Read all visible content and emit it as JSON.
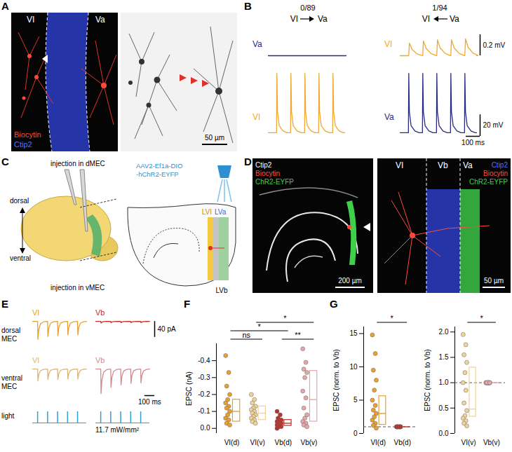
{
  "figure": {
    "A": {
      "letter": "A",
      "stains": [
        {
          "text": "Biocytin",
          "color": "#ff4a3a"
        },
        {
          "text": "Ctip2",
          "color": "#5b6cff"
        }
      ],
      "layers": [
        "VI",
        "Va"
      ],
      "scale_bar": "50 µm"
    },
    "B": {
      "letter": "B",
      "pairs": [
        {
          "count": "0/89",
          "left": "VI",
          "right": "Va",
          "arrow": "right",
          "post": {
            "label": "Va",
            "color": "#2a2a80",
            "psp_mV": [
              0,
              0,
              0,
              0,
              0
            ]
          },
          "pre": {
            "label": "VI",
            "color": "#f0a830"
          }
        },
        {
          "count": "1/94",
          "left": "VI",
          "right": "Va",
          "arrow": "left",
          "post": {
            "label": "VI",
            "color": "#f0a830",
            "psp_mV": [
              0.12,
              0.14,
              0.15,
              0.15,
              0.16
            ]
          },
          "pre": {
            "label": "Va",
            "color": "#2a2a80"
          }
        }
      ],
      "spike_times_ms": [
        50,
        150,
        250,
        350,
        450
      ],
      "spike_amplitude_mV": 55,
      "scale_bars": {
        "psp": {
          "value": 0.2,
          "label": "0.2 mV"
        },
        "spike": {
          "value": 20,
          "label": "20 mV"
        },
        "time": {
          "value": 100,
          "label": "100 ms"
        }
      }
    },
    "C": {
      "letter": "C",
      "dorsal": "dorsal",
      "ventral": "ventral",
      "injection_dorsal": "injection in dMEC",
      "injection_ventral": "injection in vMEC",
      "virus": "AAV2-Ef1a-DIO -hChR2-EYFP",
      "layers": [
        "LVI",
        "LVa",
        "LVb"
      ]
    },
    "D": {
      "letter": "D",
      "left": {
        "stains": [
          {
            "text": "Ctip2",
            "color": "#ffffff"
          },
          {
            "text": "Biocytin",
            "color": "#ff4a3a"
          },
          {
            "text": "ChR2-EYFP",
            "color": "#3fd04a"
          }
        ],
        "scale_bar": "200 µm"
      },
      "right": {
        "layers": [
          "VI",
          "Vb",
          "Va"
        ],
        "stains": [
          {
            "text": "Ctip2",
            "color": "#5b6cff"
          },
          {
            "text": "Biocytin",
            "color": "#ff4a3a"
          },
          {
            "text": "ChR2-EYFP",
            "color": "#3fd04a"
          }
        ],
        "scale_bar": "50 µm"
      }
    },
    "E": {
      "letter": "E",
      "rows": [
        {
          "label": "dorsal MEC",
          "traces": [
            {
              "layer": "VI",
              "color": "#e8a030",
              "epsc_pA": [
                -45,
                -38,
                -36,
                -34,
                -34
              ]
            },
            {
              "layer": "Vb",
              "color": "#c0302a",
              "epsc_pA": [
                -4,
                -3,
                -3,
                -3,
                -3
              ]
            }
          ]
        },
        {
          "label": "ventral MEC",
          "traces": [
            {
              "layer": "VI",
              "color": "#d9b777",
              "epsc_pA": [
                -30,
                -26,
                -26,
                -25,
                -25
              ]
            },
            {
              "layer": "Vb",
              "color": "#d08d8d",
              "epsc_pA": [
                -62,
                -46,
                -40,
                -36,
                -35
              ]
            }
          ]
        }
      ],
      "light": {
        "label": "light",
        "color": "#2f9fd8",
        "times_ms": [
          50,
          150,
          250,
          350,
          450
        ],
        "intensity": "11.7 mW/mm²"
      },
      "scale_bars": {
        "current": {
          "value": 40,
          "label": "40 pA"
        },
        "time": {
          "value": 100,
          "label": "100 ms"
        }
      }
    },
    "F": {
      "letter": "F"
    },
    "G": {
      "letter": "G"
    }
  },
  "chart_data": [
    {
      "type": "scatter",
      "y_label": "EPSC (nA)",
      "categories": [
        "VI(d)",
        "VI(v)",
        "Vb(d)",
        "Vb(v)"
      ],
      "colors": [
        "#e8a030",
        "#f0d39a",
        "#c0302a",
        "#e4a8a8"
      ],
      "values": [
        [
          -0.43,
          -0.33,
          -0.25,
          -0.2,
          -0.17,
          -0.15,
          -0.13,
          -0.12,
          -0.1,
          -0.08,
          -0.06,
          -0.05,
          -0.03,
          -0.02
        ],
        [
          -0.2,
          -0.17,
          -0.15,
          -0.13,
          -0.12,
          -0.11,
          -0.1,
          -0.09,
          -0.08,
          -0.07,
          -0.06,
          -0.05,
          -0.04,
          -0.03
        ],
        [
          -0.1,
          -0.08,
          -0.06,
          -0.05,
          -0.04,
          -0.04,
          -0.03,
          -0.03,
          -0.03,
          -0.02,
          -0.02,
          -0.02,
          -0.01,
          -0.01,
          -0.01,
          0
        ],
        [
          -0.47,
          -0.39,
          -0.35,
          -0.33,
          -0.3,
          -0.22,
          -0.18,
          -0.12,
          -0.08,
          -0.06,
          -0.04,
          -0.03,
          -0.02,
          -0.01
        ]
      ],
      "box": [
        {
          "q1": -0.04,
          "median": -0.1,
          "q3": -0.17
        },
        {
          "q1": -0.05,
          "median": -0.09,
          "q3": -0.13
        },
        {
          "q1": -0.015,
          "median": -0.03,
          "q3": -0.05
        },
        {
          "q1": -0.04,
          "median": -0.17,
          "q3": -0.34
        }
      ],
      "ylim": [
        0.03,
        -0.5
      ],
      "yticks": [
        {
          "value": 0,
          "label": "0.0"
        },
        -0.1,
        -0.2,
        -0.3,
        -0.4
      ],
      "comparisons": [
        {
          "from": "VI(d)",
          "to": "VI(v)",
          "label": "ns"
        },
        {
          "from": "Vb(d)",
          "to": "Vb(v)",
          "label": "**"
        },
        {
          "from": "VI(d)",
          "to": "Vb(d)",
          "label": "*"
        },
        {
          "from": "VI(v)",
          "to": "Vb(v)",
          "label": "*"
        }
      ]
    },
    {
      "type": "scatter",
      "y_label": "EPSC (norm. to Vb)",
      "categories": [
        "VI(d)",
        "Vb(d)"
      ],
      "colors": [
        "#e8a030",
        "#c0302a"
      ],
      "values": [
        [
          14.8,
          12,
          9.5,
          8,
          6.5,
          5,
          4.2,
          3.5,
          3,
          2.5,
          2,
          1.5,
          1.2,
          0.8
        ],
        [
          1,
          1,
          1,
          1,
          1,
          1,
          1,
          1,
          1,
          1,
          1,
          1,
          1,
          1
        ]
      ],
      "box": [
        {
          "q1": 1.3,
          "median": 3,
          "q3": 5.6
        },
        {
          "q1": 1,
          "median": 1,
          "q3": 1
        }
      ],
      "reference": {
        "value": 1,
        "line_style": "dashed"
      },
      "ylim": [
        0,
        16
      ],
      "yticks": [
        0,
        5,
        10,
        15
      ],
      "comparisons": [
        {
          "from": "VI(d)",
          "to": "Vb(d)",
          "label": "*"
        }
      ]
    },
    {
      "type": "scatter",
      "y_label": "EPSC (norm. to Vb)",
      "categories": [
        "VI(v)",
        "Vb(v)"
      ],
      "colors": [
        "#f0d39a",
        "#e4a8a8"
      ],
      "values": [
        [
          1.95,
          1.75,
          1.55,
          1.4,
          1.2,
          1.0,
          0.85,
          0.6,
          0.45,
          0.35,
          0.3,
          0.25,
          0.2,
          0.15
        ],
        [
          1,
          1,
          1,
          1,
          1,
          1,
          1,
          1,
          1,
          1,
          1,
          1,
          1,
          1
        ]
      ],
      "box": [
        {
          "q1": 0.33,
          "median": 0.48,
          "q3": 1.3
        },
        {
          "q1": 1,
          "median": 1,
          "q3": 1
        }
      ],
      "reference": {
        "value": 1,
        "line_style": "dashed"
      },
      "ylim": [
        0,
        2.1
      ],
      "yticks": [
        {
          "value": 0,
          "label": "0.0"
        },
        0.5,
        {
          "value": 1,
          "label": "1.0"
        },
        1.5,
        {
          "value": 2,
          "label": "2.0"
        }
      ],
      "comparisons": [
        {
          "from": "VI(v)",
          "to": "Vb(v)",
          "label": "*"
        }
      ]
    }
  ]
}
